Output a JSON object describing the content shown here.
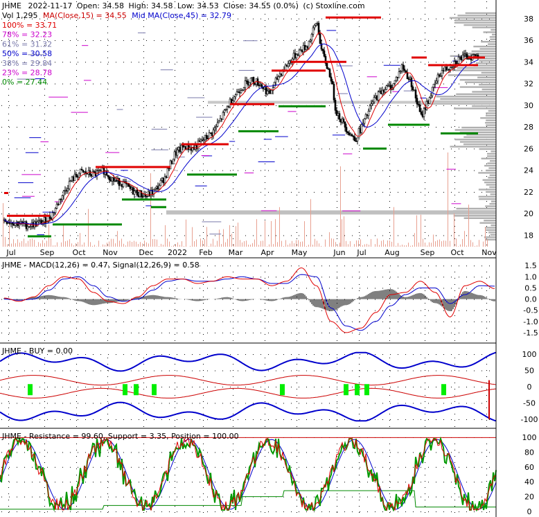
{
  "chart_data": [
    {
      "type": "candlestick",
      "header": {
        "ticker": "JHME",
        "date": "2022-11-17",
        "open": "Open: 34.58",
        "high": "High: 34.58",
        "low": "Low: 34.53",
        "close": "Close: 34.55 (0.0%)",
        "source": "(c) Stoxline.com"
      },
      "legend": {
        "vol": "Vol 1,295",
        "ma15": "MA(Close,15) = 34.55",
        "ma45": "Mid MA(Close,45) = 32.79"
      },
      "fib_levels": [
        {
          "label": "100% = 33.71",
          "color": "#e00000"
        },
        {
          "label": "78% = 32.23",
          "color": "#cc00cc"
        },
        {
          "label": "61% = 31.32",
          "color": "#7777aa"
        },
        {
          "label": "50% = 30.58",
          "color": "#0000cc"
        },
        {
          "label": "38% = 29.84",
          "color": "#7777aa"
        },
        {
          "label": "23% = 28.78",
          "color": "#cc00cc"
        },
        {
          "label": "0% = 27.44",
          "color": "#008800"
        }
      ],
      "y_ticks": [
        "38",
        "36",
        "34",
        "32",
        "30",
        "28",
        "26",
        "24",
        "22",
        "20",
        "18"
      ],
      "ylim": [
        17.2,
        39.2
      ],
      "x_ticks": [
        "Jul",
        "Sep",
        "Oct",
        "Nov",
        "Dec",
        "2022",
        "Feb",
        "Mar",
        "Apr",
        "May",
        "Jun",
        "Jul",
        "Aug",
        "Sep",
        "Oct",
        "Nov"
      ],
      "close_path": [
        [
          0,
          19.4
        ],
        [
          0.02,
          19.2
        ],
        [
          0.05,
          18.9
        ],
        [
          0.08,
          19.2
        ],
        [
          0.1,
          19.8
        ],
        [
          0.12,
          21.5
        ],
        [
          0.14,
          23.0
        ],
        [
          0.16,
          23.8
        ],
        [
          0.19,
          23.6
        ],
        [
          0.21,
          24.0
        ],
        [
          0.23,
          23.1
        ],
        [
          0.25,
          22.8
        ],
        [
          0.27,
          22.1
        ],
        [
          0.3,
          21.6
        ],
        [
          0.32,
          22.2
        ],
        [
          0.34,
          23.4
        ],
        [
          0.36,
          25.5
        ],
        [
          0.38,
          26.2
        ],
        [
          0.4,
          26.0
        ],
        [
          0.42,
          26.8
        ],
        [
          0.44,
          27.5
        ],
        [
          0.46,
          28.9
        ],
        [
          0.48,
          30.6
        ],
        [
          0.5,
          31.6
        ],
        [
          0.52,
          32.4
        ],
        [
          0.54,
          32.0
        ],
        [
          0.56,
          31.0
        ],
        [
          0.58,
          32.8
        ],
        [
          0.6,
          33.9
        ],
        [
          0.62,
          34.9
        ],
        [
          0.64,
          35.5
        ],
        [
          0.65,
          36.6
        ],
        [
          0.66,
          37.8
        ],
        [
          0.67,
          35.0
        ],
        [
          0.69,
          32.5
        ],
        [
          0.7,
          29.5
        ],
        [
          0.72,
          28.0
        ],
        [
          0.74,
          26.8
        ],
        [
          0.76,
          28.5
        ],
        [
          0.78,
          30.5
        ],
        [
          0.8,
          31.5
        ],
        [
          0.82,
          31.8
        ],
        [
          0.84,
          33.6
        ],
        [
          0.86,
          32.0
        ],
        [
          0.88,
          28.9
        ],
        [
          0.9,
          31.0
        ],
        [
          0.92,
          33.0
        ],
        [
          0.94,
          33.6
        ],
        [
          0.96,
          34.3
        ],
        [
          0.98,
          34.5
        ],
        [
          1.0,
          34.55
        ]
      ]
    },
    {
      "type": "line",
      "title": "JHME - MACD(12,26) = 0.47, Signal(12,26,9) = 0.58",
      "y_ticks": [
        "1.5",
        "1.0",
        "0.5",
        "0.0",
        "-0.5",
        "-1.0",
        "-1.5"
      ],
      "ylim": [
        -1.75,
        1.6
      ],
      "series": [
        {
          "name": "MACD",
          "color": "#e00000",
          "values": [
            0.05,
            -0.1,
            0.1,
            0.6,
            1.0,
            0.9,
            0.3,
            -0.1,
            -0.2,
            0.1,
            0.6,
            0.9,
            0.9,
            0.7,
            0.8,
            1.0,
            0.9,
            0.9,
            0.6,
            0.8,
            1.4,
            0.6,
            -1.0,
            -1.5,
            -1.3,
            -0.6,
            0.2,
            0.3,
            0.8,
            0.3,
            -0.8,
            0.6,
            0.8,
            0.47
          ]
        },
        {
          "name": "Signal",
          "color": "#0000cc",
          "values": [
            0.0,
            -0.05,
            0.0,
            0.4,
            0.9,
            1.0,
            0.6,
            0.1,
            -0.1,
            0.0,
            0.4,
            0.8,
            0.9,
            0.8,
            0.8,
            0.9,
            1.0,
            0.9,
            0.7,
            0.7,
            1.1,
            1.0,
            -0.4,
            -1.2,
            -1.4,
            -1.0,
            -0.3,
            0.2,
            0.5,
            0.5,
            -0.2,
            0.2,
            0.6,
            0.58
          ]
        }
      ]
    },
    {
      "type": "line",
      "title": "JHME - BUY = 0.00",
      "y_ticks": [
        "100",
        "50",
        "0",
        "-50",
        "-100"
      ],
      "ylim": [
        -115,
        115
      ]
    },
    {
      "type": "line",
      "title": "JHME - Resistance = 99.60, Support = 3.35, Position = 100.00",
      "y_ticks": [
        "100",
        "80",
        "60",
        "40",
        "20",
        "0"
      ],
      "ylim": [
        0,
        100
      ]
    }
  ]
}
